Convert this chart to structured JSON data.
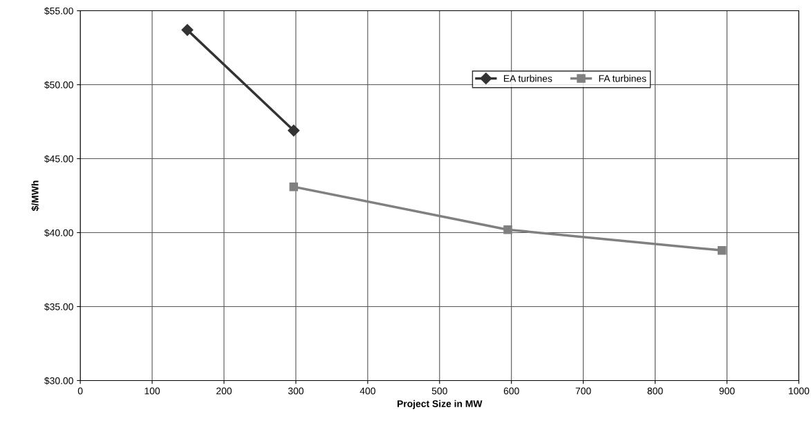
{
  "chart_data": {
    "type": "line",
    "xlabel": "Project Size in MW",
    "ylabel": "$/MWh",
    "series": [
      {
        "name": "EA turbines",
        "color": "#333333",
        "x": [
          149,
          297
        ],
        "values": [
          53.7,
          46.9
        ],
        "marker": "diamond"
      },
      {
        "name": "FA turbines",
        "color": "#808080",
        "x": [
          297,
          595,
          893
        ],
        "values": [
          43.1,
          40.2,
          38.8
        ],
        "marker": "square"
      }
    ],
    "xlim": [
      0,
      1000
    ],
    "xticks": [
      0,
      100,
      200,
      300,
      400,
      500,
      600,
      700,
      800,
      900,
      1000
    ],
    "ylim": [
      30,
      55
    ],
    "yticks": [
      {
        "value": 30,
        "label": "$30.00"
      },
      {
        "value": 35,
        "label": "$35.00"
      },
      {
        "value": 40,
        "label": "$40.00"
      },
      {
        "value": 45,
        "label": "$45.00"
      },
      {
        "value": 50,
        "label": "$50.00"
      },
      {
        "value": 55,
        "label": "$55.00"
      }
    ],
    "grid": true,
    "legend": "top right",
    "line_style": "solid"
  }
}
